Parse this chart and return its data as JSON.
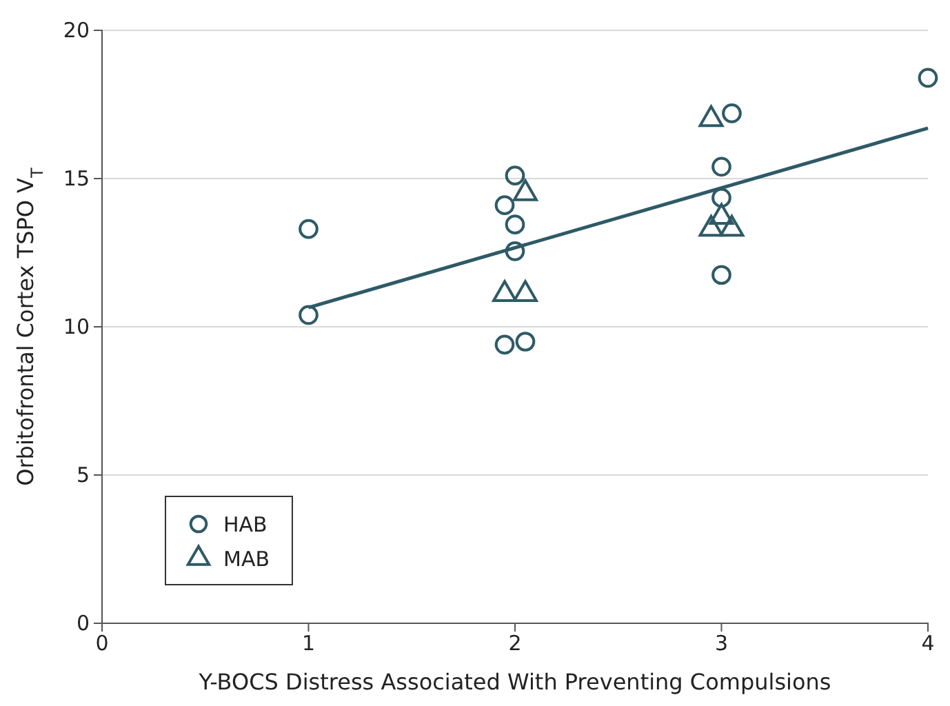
{
  "chart_data": {
    "type": "scatter",
    "xlabel": "Y-BOCS Distress Associated With Preventing Compulsions",
    "ylabel": "Orbitofrontal Cortex TSPO V$_{T}$",
    "xlim": [
      0,
      4
    ],
    "ylim": [
      0,
      20
    ],
    "xticks": [
      0,
      1,
      2,
      3,
      4
    ],
    "yticks": [
      0,
      5,
      10,
      15,
      20
    ],
    "grid": "y",
    "legend": "bottom left",
    "series": [
      {
        "name": "HAB",
        "marker": "circle",
        "color": "#2e5a66",
        "x": [
          1,
          1,
          1.95,
          2,
          2,
          2,
          1.95,
          2.05,
          3,
          3.05,
          3,
          3,
          4
        ],
        "values": [
          13.3,
          10.4,
          14.1,
          15.1,
          13.45,
          12.55,
          9.4,
          9.5,
          15.4,
          17.2,
          14.35,
          11.75,
          18.4
        ]
      },
      {
        "name": "MAB",
        "marker": "triangle",
        "color": "#2e5a66",
        "x": [
          2.05,
          1.95,
          2.05,
          2.95,
          3,
          2.95,
          3.05
        ],
        "values": [
          14.5,
          11.1,
          11.1,
          17.0,
          13.7,
          13.3,
          13.3
        ]
      },
      {
        "type": "line",
        "marker": "none",
        "line_style": "solid",
        "color": "#2e5a66",
        "x": [
          1,
          4
        ],
        "values": [
          10.65,
          16.7
        ]
      }
    ]
  }
}
